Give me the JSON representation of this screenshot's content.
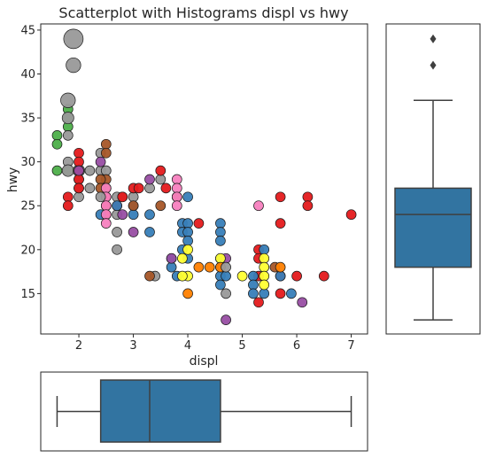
{
  "chart_data": {
    "type": "scatter",
    "title": "Scatterplot with Histograms displ vs hwy",
    "xlabel": "displ",
    "ylabel": "hwy",
    "xlim": [
      1.3,
      7.3
    ],
    "ylim": [
      10.4,
      45.7
    ],
    "x_ticks": [
      2,
      3,
      4,
      5,
      6,
      7
    ],
    "y_ticks": [
      15,
      20,
      25,
      30,
      35,
      40,
      45
    ],
    "grid": false,
    "colors": {
      "green": "#4daf4a",
      "gray": "#999999",
      "red": "#e41a1c",
      "blue": "#377eb8",
      "brown": "#a65628",
      "pink": "#f781bf",
      "purple": "#984ea3",
      "yellow": "#ffff33",
      "orange": "#ff7f00",
      "box": "#3274a1",
      "line": "#3f3f3f"
    },
    "points": [
      {
        "x": 1.6,
        "y": 33,
        "s": 1,
        "c": "green"
      },
      {
        "x": 1.6,
        "y": 32,
        "s": 1,
        "c": "green"
      },
      {
        "x": 1.6,
        "y": 29,
        "s": 1,
        "c": "green"
      },
      {
        "x": 1.8,
        "y": 36,
        "s": 1,
        "c": "green"
      },
      {
        "x": 1.8,
        "y": 35,
        "s": 1,
        "c": "green"
      },
      {
        "x": 1.8,
        "y": 34,
        "s": 1,
        "c": "green"
      },
      {
        "x": 1.8,
        "y": 29,
        "s": 1,
        "c": "green"
      },
      {
        "x": 1.9,
        "y": 44,
        "s": 2,
        "c": "gray"
      },
      {
        "x": 1.9,
        "y": 41,
        "s": 1.5,
        "c": "gray"
      },
      {
        "x": 1.8,
        "y": 37,
        "s": 1.5,
        "c": "gray"
      },
      {
        "x": 1.8,
        "y": 35,
        "s": 1.2,
        "c": "gray"
      },
      {
        "x": 1.8,
        "y": 33,
        "s": 1,
        "c": "gray"
      },
      {
        "x": 1.8,
        "y": 30,
        "s": 1,
        "c": "gray"
      },
      {
        "x": 1.8,
        "y": 29,
        "s": 1.2,
        "c": "gray"
      },
      {
        "x": 2.0,
        "y": 29,
        "s": 1.2,
        "c": "gray"
      },
      {
        "x": 2.0,
        "y": 28,
        "s": 1,
        "c": "gray"
      },
      {
        "x": 2.0,
        "y": 27,
        "s": 1,
        "c": "gray"
      },
      {
        "x": 2.0,
        "y": 26,
        "s": 1,
        "c": "gray"
      },
      {
        "x": 2.2,
        "y": 29,
        "s": 1,
        "c": "gray"
      },
      {
        "x": 2.4,
        "y": 29,
        "s": 1,
        "c": "gray"
      },
      {
        "x": 2.4,
        "y": 31,
        "s": 1,
        "c": "gray"
      },
      {
        "x": 2.5,
        "y": 29,
        "s": 1,
        "c": "gray"
      },
      {
        "x": 2.7,
        "y": 26,
        "s": 1,
        "c": "gray"
      },
      {
        "x": 2.8,
        "y": 26,
        "s": 1,
        "c": "gray"
      },
      {
        "x": 3.0,
        "y": 26,
        "s": 1,
        "c": "gray"
      },
      {
        "x": 3.3,
        "y": 27,
        "s": 1,
        "c": "gray"
      },
      {
        "x": 3.5,
        "y": 28,
        "s": 1,
        "c": "gray"
      },
      {
        "x": 3.8,
        "y": 26,
        "s": 1,
        "c": "gray"
      },
      {
        "x": 2.7,
        "y": 24,
        "s": 1,
        "c": "gray"
      },
      {
        "x": 2.7,
        "y": 22,
        "s": 1,
        "c": "gray"
      },
      {
        "x": 2.7,
        "y": 20,
        "s": 1,
        "c": "gray"
      },
      {
        "x": 3.4,
        "y": 17,
        "s": 1,
        "c": "gray"
      },
      {
        "x": 1.8,
        "y": 26,
        "s": 1,
        "c": "red"
      },
      {
        "x": 1.8,
        "y": 25,
        "s": 1,
        "c": "red"
      },
      {
        "x": 2.0,
        "y": 31,
        "s": 1,
        "c": "red"
      },
      {
        "x": 2.0,
        "y": 30,
        "s": 1,
        "c": "red"
      },
      {
        "x": 2.0,
        "y": 29,
        "s": 1,
        "c": "red"
      },
      {
        "x": 2.0,
        "y": 28,
        "s": 1,
        "c": "red"
      },
      {
        "x": 2.0,
        "y": 27,
        "s": 1,
        "c": "red"
      },
      {
        "x": 2.5,
        "y": 26,
        "s": 1,
        "c": "red"
      },
      {
        "x": 2.5,
        "y": 25,
        "s": 1,
        "c": "red"
      },
      {
        "x": 2.5,
        "y": 24,
        "s": 1,
        "c": "red"
      },
      {
        "x": 2.7,
        "y": 25,
        "s": 1,
        "c": "red"
      },
      {
        "x": 2.8,
        "y": 26,
        "s": 1,
        "c": "red"
      },
      {
        "x": 3.0,
        "y": 27,
        "s": 1,
        "c": "red"
      },
      {
        "x": 3.1,
        "y": 27,
        "s": 1,
        "c": "red"
      },
      {
        "x": 3.5,
        "y": 29,
        "s": 1,
        "c": "red"
      },
      {
        "x": 3.6,
        "y": 27,
        "s": 1,
        "c": "red"
      },
      {
        "x": 4.2,
        "y": 23,
        "s": 1,
        "c": "red"
      },
      {
        "x": 5.3,
        "y": 20,
        "s": 1,
        "c": "red"
      },
      {
        "x": 5.3,
        "y": 19,
        "s": 1,
        "c": "red"
      },
      {
        "x": 5.3,
        "y": 17,
        "s": 1,
        "c": "red"
      },
      {
        "x": 5.3,
        "y": 14,
        "s": 1,
        "c": "red"
      },
      {
        "x": 5.7,
        "y": 26,
        "s": 1,
        "c": "red"
      },
      {
        "x": 5.7,
        "y": 23,
        "s": 1,
        "c": "red"
      },
      {
        "x": 5.7,
        "y": 17,
        "s": 1,
        "c": "red"
      },
      {
        "x": 5.7,
        "y": 15,
        "s": 1,
        "c": "red"
      },
      {
        "x": 6.0,
        "y": 17,
        "s": 1,
        "c": "red"
      },
      {
        "x": 6.2,
        "y": 26,
        "s": 1,
        "c": "red"
      },
      {
        "x": 6.2,
        "y": 25,
        "s": 1,
        "c": "red"
      },
      {
        "x": 6.5,
        "y": 17,
        "s": 1,
        "c": "red"
      },
      {
        "x": 7.0,
        "y": 24,
        "s": 1,
        "c": "red"
      },
      {
        "x": 4.0,
        "y": 26,
        "s": 1,
        "c": "blue"
      },
      {
        "x": 3.9,
        "y": 23,
        "s": 1,
        "c": "blue"
      },
      {
        "x": 3.9,
        "y": 22,
        "s": 1,
        "c": "blue"
      },
      {
        "x": 3.9,
        "y": 20,
        "s": 1,
        "c": "blue"
      },
      {
        "x": 4.0,
        "y": 23,
        "s": 1,
        "c": "blue"
      },
      {
        "x": 4.0,
        "y": 22,
        "s": 1,
        "c": "blue"
      },
      {
        "x": 4.0,
        "y": 21,
        "s": 1,
        "c": "blue"
      },
      {
        "x": 4.0,
        "y": 19,
        "s": 1,
        "c": "blue"
      },
      {
        "x": 4.6,
        "y": 23,
        "s": 1,
        "c": "blue"
      },
      {
        "x": 4.6,
        "y": 22,
        "s": 1,
        "c": "blue"
      },
      {
        "x": 4.6,
        "y": 21,
        "s": 1,
        "c": "blue"
      },
      {
        "x": 4.6,
        "y": 19,
        "s": 1,
        "c": "blue"
      },
      {
        "x": 4.6,
        "y": 18,
        "s": 1,
        "c": "blue"
      },
      {
        "x": 4.6,
        "y": 17,
        "s": 1,
        "c": "blue"
      },
      {
        "x": 4.6,
        "y": 16,
        "s": 1,
        "c": "blue"
      },
      {
        "x": 4.7,
        "y": 17,
        "s": 1,
        "c": "blue"
      },
      {
        "x": 5.2,
        "y": 17,
        "s": 1,
        "c": "blue"
      },
      {
        "x": 5.2,
        "y": 16,
        "s": 1,
        "c": "blue"
      },
      {
        "x": 5.2,
        "y": 15,
        "s": 1,
        "c": "blue"
      },
      {
        "x": 5.4,
        "y": 20,
        "s": 1,
        "c": "blue"
      },
      {
        "x": 5.4,
        "y": 15,
        "s": 1,
        "c": "blue"
      },
      {
        "x": 5.7,
        "y": 17,
        "s": 1,
        "c": "blue"
      },
      {
        "x": 5.9,
        "y": 15,
        "s": 1,
        "c": "blue"
      },
      {
        "x": 3.3,
        "y": 24,
        "s": 1,
        "c": "blue"
      },
      {
        "x": 3.3,
        "y": 22,
        "s": 1,
        "c": "blue"
      },
      {
        "x": 3.0,
        "y": 25,
        "s": 1,
        "c": "blue"
      },
      {
        "x": 3.0,
        "y": 24,
        "s": 1,
        "c": "blue"
      },
      {
        "x": 2.7,
        "y": 25,
        "s": 1,
        "c": "blue"
      },
      {
        "x": 2.4,
        "y": 24,
        "s": 1,
        "c": "blue"
      },
      {
        "x": 3.8,
        "y": 17,
        "s": 1,
        "c": "blue"
      },
      {
        "x": 3.7,
        "y": 19,
        "s": 1,
        "c": "blue"
      },
      {
        "x": 3.7,
        "y": 18,
        "s": 1,
        "c": "blue"
      },
      {
        "x": 3.5,
        "y": 25,
        "s": 1,
        "c": "brown"
      },
      {
        "x": 3.8,
        "y": 26,
        "s": 1,
        "c": "brown"
      },
      {
        "x": 3.0,
        "y": 25,
        "s": 1,
        "c": "brown"
      },
      {
        "x": 2.5,
        "y": 32,
        "s": 1,
        "c": "brown"
      },
      {
        "x": 2.5,
        "y": 31,
        "s": 1,
        "c": "brown"
      },
      {
        "x": 2.5,
        "y": 28,
        "s": 1,
        "c": "brown"
      },
      {
        "x": 2.5,
        "y": 27,
        "s": 1,
        "c": "brown"
      },
      {
        "x": 2.4,
        "y": 28,
        "s": 1,
        "c": "brown"
      },
      {
        "x": 2.4,
        "y": 27,
        "s": 1,
        "c": "brown"
      },
      {
        "x": 3.3,
        "y": 17,
        "s": 1,
        "c": "brown"
      },
      {
        "x": 5.6,
        "y": 18,
        "s": 1,
        "c": "brown"
      },
      {
        "x": 2.5,
        "y": 27,
        "s": 1,
        "c": "pink"
      },
      {
        "x": 2.5,
        "y": 26,
        "s": 1,
        "c": "pink"
      },
      {
        "x": 2.5,
        "y": 25,
        "s": 1,
        "c": "pink"
      },
      {
        "x": 2.5,
        "y": 24,
        "s": 1,
        "c": "pink"
      },
      {
        "x": 2.5,
        "y": 23,
        "s": 1,
        "c": "pink"
      },
      {
        "x": 3.8,
        "y": 28,
        "s": 1,
        "c": "pink"
      },
      {
        "x": 3.8,
        "y": 27,
        "s": 1,
        "c": "pink"
      },
      {
        "x": 3.8,
        "y": 26,
        "s": 1,
        "c": "pink"
      },
      {
        "x": 3.8,
        "y": 25,
        "s": 1,
        "c": "pink"
      },
      {
        "x": 5.3,
        "y": 25,
        "s": 1,
        "c": "pink"
      },
      {
        "x": 2.0,
        "y": 29,
        "s": 1,
        "c": "purple"
      },
      {
        "x": 2.4,
        "y": 30,
        "s": 1,
        "c": "purple"
      },
      {
        "x": 2.8,
        "y": 24,
        "s": 1,
        "c": "purple"
      },
      {
        "x": 3.0,
        "y": 22,
        "s": 1,
        "c": "purple"
      },
      {
        "x": 3.3,
        "y": 28,
        "s": 1,
        "c": "purple"
      },
      {
        "x": 3.7,
        "y": 19,
        "s": 1,
        "c": "purple"
      },
      {
        "x": 4.7,
        "y": 19,
        "s": 1,
        "c": "purple"
      },
      {
        "x": 4.7,
        "y": 12,
        "s": 1,
        "c": "purple"
      },
      {
        "x": 6.1,
        "y": 14,
        "s": 1,
        "c": "purple"
      },
      {
        "x": 3.9,
        "y": 19,
        "s": 1,
        "c": "yellow"
      },
      {
        "x": 4.0,
        "y": 20,
        "s": 1,
        "c": "yellow"
      },
      {
        "x": 4.0,
        "y": 17,
        "s": 1,
        "c": "yellow"
      },
      {
        "x": 3.9,
        "y": 17,
        "s": 1,
        "c": "yellow"
      },
      {
        "x": 4.6,
        "y": 19,
        "s": 1,
        "c": "yellow"
      },
      {
        "x": 5.0,
        "y": 17,
        "s": 1,
        "c": "yellow"
      },
      {
        "x": 5.4,
        "y": 19,
        "s": 1,
        "c": "yellow"
      },
      {
        "x": 5.4,
        "y": 18,
        "s": 1,
        "c": "yellow"
      },
      {
        "x": 5.4,
        "y": 17,
        "s": 1,
        "c": "yellow"
      },
      {
        "x": 5.4,
        "y": 16,
        "s": 1,
        "c": "yellow"
      },
      {
        "x": 4.0,
        "y": 15,
        "s": 1,
        "c": "orange"
      },
      {
        "x": 4.2,
        "y": 18,
        "s": 1,
        "c": "orange"
      },
      {
        "x": 4.4,
        "y": 18,
        "s": 1,
        "c": "orange"
      },
      {
        "x": 4.6,
        "y": 18,
        "s": 1,
        "c": "orange"
      },
      {
        "x": 5.7,
        "y": 18,
        "s": 1,
        "c": "orange"
      },
      {
        "x": 4.7,
        "y": 15,
        "s": 1,
        "c": "gray"
      },
      {
        "x": 4.7,
        "y": 18,
        "s": 1,
        "c": "gray"
      },
      {
        "x": 2.4,
        "y": 26,
        "s": 1,
        "c": "gray"
      },
      {
        "x": 2.2,
        "y": 27,
        "s": 1,
        "c": "gray"
      }
    ],
    "box_y": {
      "variable": "hwy",
      "whisker_low": 12,
      "q1": 18,
      "median": 24,
      "q3": 27,
      "whisker_high": 37,
      "outliers": [
        41,
        44
      ]
    },
    "box_x": {
      "variable": "displ",
      "whisker_low": 1.6,
      "q1": 2.4,
      "median": 3.3,
      "q3": 4.6,
      "whisker_high": 7.0
    }
  }
}
